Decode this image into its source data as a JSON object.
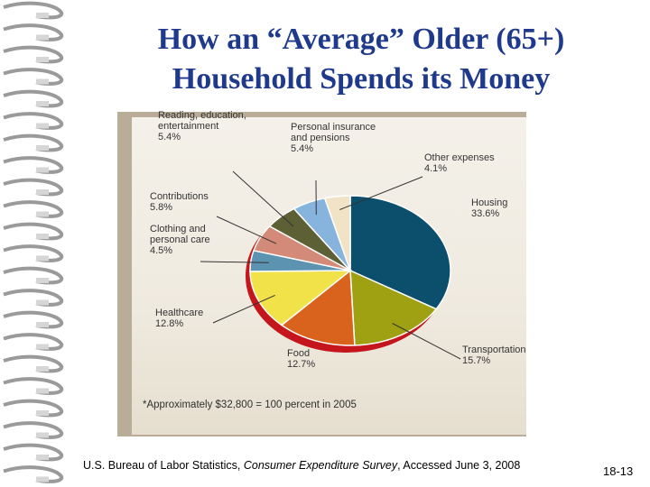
{
  "slide": {
    "title_line1": "How an “Average” Older (65+)",
    "title_line2": "Household Spends its Money",
    "source_prefix": "U.S. Bureau of Labor Statistics, ",
    "source_title": "Consumer Expenditure Survey",
    "source_suffix": ", Accessed June 3, 2008",
    "slide_number": "18-13"
  },
  "chart_data": {
    "type": "pie",
    "footnote": "*Approximately $32,800 = 100 percent in 2005",
    "slices": [
      {
        "line1": "Housing",
        "line2": "",
        "value_label": "33.6%",
        "value": 33.6,
        "color": "#0b4f6c"
      },
      {
        "line1": "Transportation",
        "line2": "",
        "value_label": "15.7%",
        "value": 15.7,
        "color": "#9fa012"
      },
      {
        "line1": "Food",
        "line2": "",
        "value_label": "12.7%",
        "value": 12.7,
        "color": "#d9621c"
      },
      {
        "line1": "Healthcare",
        "line2": "",
        "value_label": "12.8%",
        "value": 12.8,
        "color": "#f2e24a"
      },
      {
        "line1": "Clothing and",
        "line2": "personal care",
        "value_label": "4.5%",
        "value": 4.5,
        "color": "#5b93b1"
      },
      {
        "line1": "Contributions",
        "line2": "",
        "value_label": "5.8%",
        "value": 5.8,
        "color": "#d48a78"
      },
      {
        "line1": "Reading, education,",
        "line2": "entertainment",
        "value_label": "5.4%",
        "value": 5.4,
        "color": "#5d5f35"
      },
      {
        "line1": "Personal insurance",
        "line2": "and pensions",
        "value_label": "5.4%",
        "value": 5.4,
        "color": "#86b4dd"
      },
      {
        "line1": "Other expenses",
        "line2": "",
        "value_label": "4.1%",
        "value": 4.1,
        "color": "#f1e4c6"
      }
    ],
    "colors": {
      "rim": "#c4161c",
      "panel_border": "#b9ad98"
    }
  }
}
